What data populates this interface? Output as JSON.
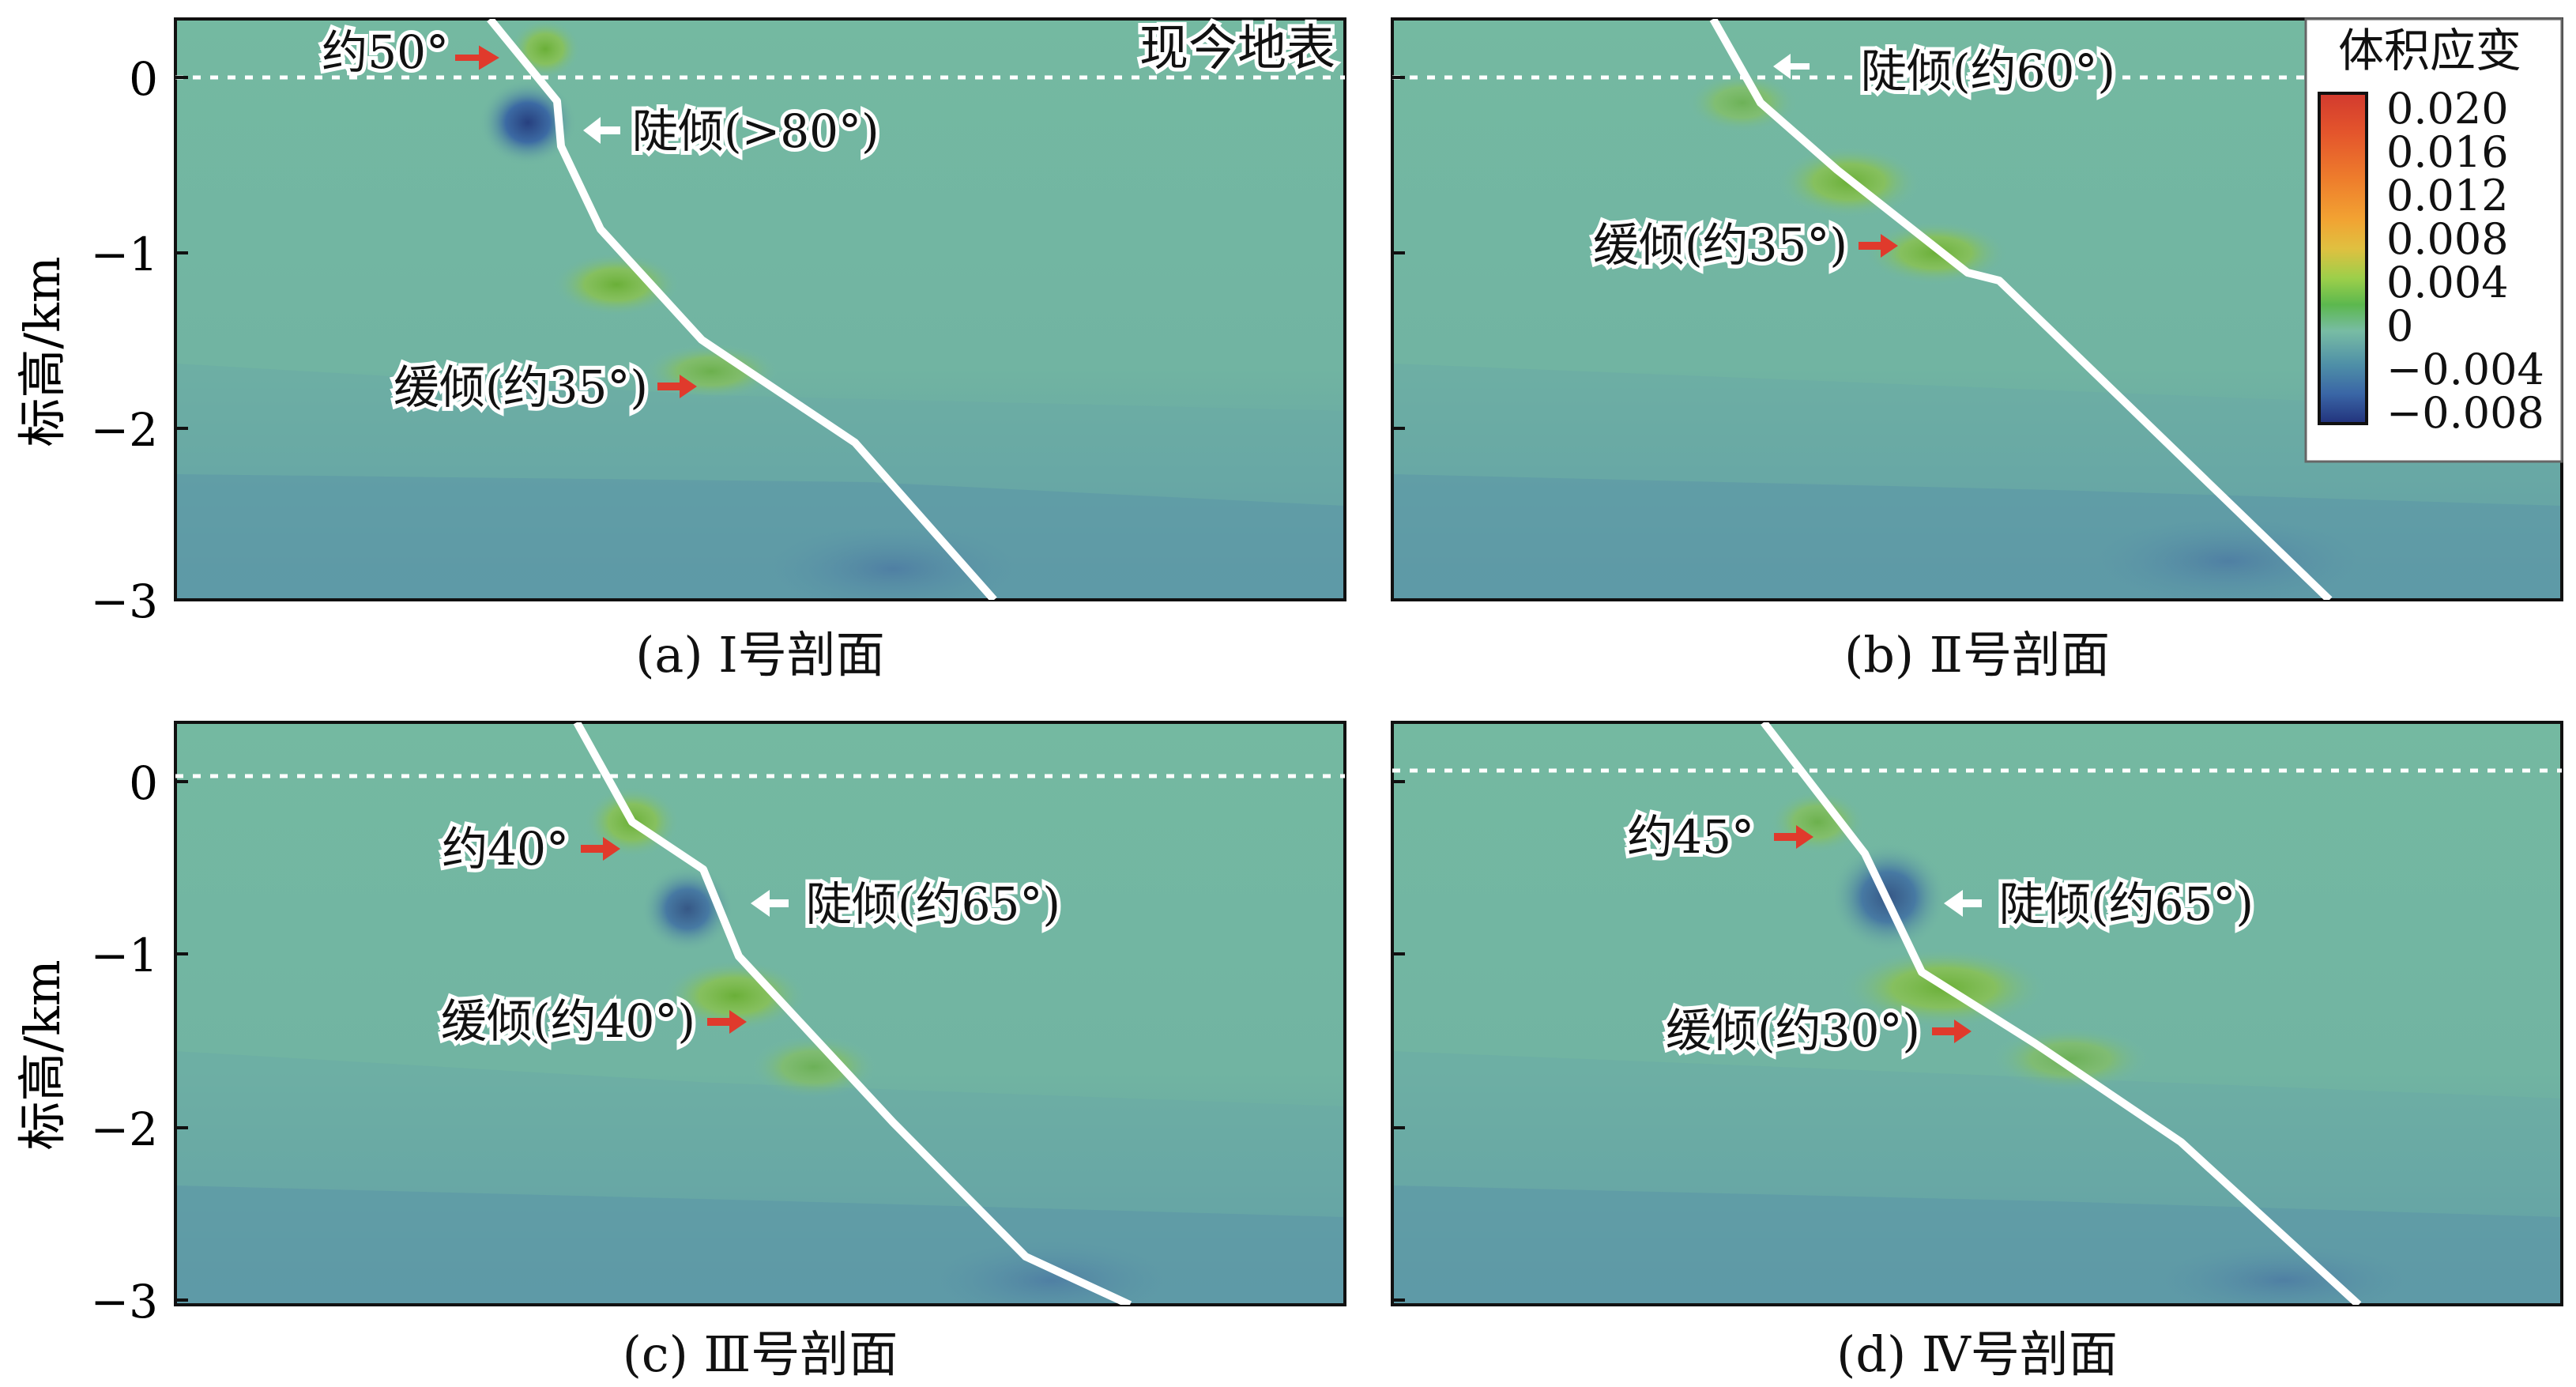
{
  "colorbar": {
    "title": "体积应变",
    "ticks": [
      "0.020",
      "0.016",
      "0.012",
      "0.008",
      "0.004",
      "0",
      "−0.004",
      "−0.008"
    ],
    "colors": [
      "#d23a2e",
      "#e4552c",
      "#ee7d2c",
      "#f2a232",
      "#e0c040",
      "#9ccf4a",
      "#5cb84e",
      "#78bca4",
      "#4f90a7",
      "#3a66a6",
      "#22327c"
    ]
  },
  "chart_data": [
    {
      "type": "heatmap",
      "panel": "(a)",
      "caption": "(a)  Ⅰ号剖面",
      "ylabel": "标高/km",
      "ylim": [
        -3,
        0.35
      ],
      "yticks": [
        "0",
        "−1",
        "−2",
        "−3"
      ],
      "surface_label": "现今地表",
      "annotations": [
        {
          "text": "约50°",
          "arrow": "red"
        },
        {
          "text": "陡倾(>80°)",
          "arrow": "white"
        },
        {
          "text": "缓倾(约35°)",
          "arrow": "red"
        }
      ]
    },
    {
      "type": "heatmap",
      "panel": "(b)",
      "caption": "(b)  Ⅱ号剖面",
      "ylabel": "",
      "ylim": [
        -3,
        0.35
      ],
      "yticks": [],
      "annotations": [
        {
          "text": "陡倾(约60°)",
          "arrow": "white"
        },
        {
          "text": "缓倾(约35°)",
          "arrow": "red"
        }
      ]
    },
    {
      "type": "heatmap",
      "panel": "(c)",
      "caption": "(c)  Ⅲ号剖面",
      "ylabel": "标高/km",
      "ylim": [
        -3,
        0.35
      ],
      "yticks": [
        "0",
        "−1",
        "−2",
        "−3"
      ],
      "annotations": [
        {
          "text": "约40°",
          "arrow": "red"
        },
        {
          "text": "陡倾(约65°)",
          "arrow": "white"
        },
        {
          "text": "缓倾(约40°)",
          "arrow": "red"
        }
      ]
    },
    {
      "type": "heatmap",
      "panel": "(d)",
      "caption": "(d)  Ⅳ号剖面",
      "ylabel": "",
      "ylim": [
        -3,
        0.35
      ],
      "yticks": [],
      "annotations": [
        {
          "text": "约45°",
          "arrow": "red"
        },
        {
          "text": "陡倾(约65°)",
          "arrow": "white"
        },
        {
          "text": "缓倾(约30°)",
          "arrow": "red"
        }
      ]
    }
  ]
}
